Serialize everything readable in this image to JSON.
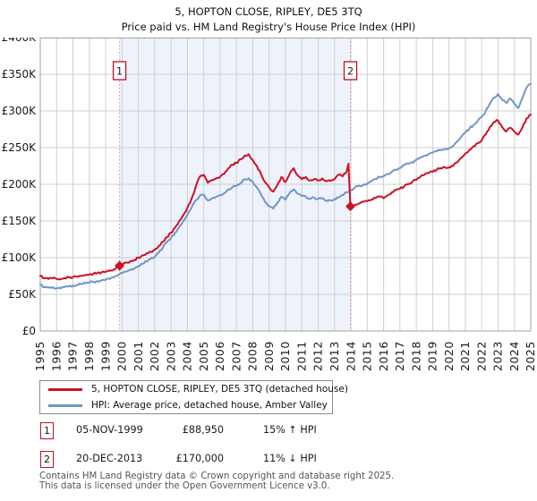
{
  "title": "5, HOPTON CLOSE, RIPLEY, DE5 3TQ",
  "subtitle": "Price paid vs. HM Land Registry's House Price Index (HPI)",
  "colors": {
    "property_line": "#cc1124",
    "hpi_line": "#7096c6",
    "marker_box_border": "#bb1122",
    "dashed_line": "#e58a8a",
    "band": "#eef2fb",
    "grid": "#cfcfcf",
    "axis_border": "#a0a0a0",
    "tick_text": "#1a1a1a"
  },
  "chart_data": {
    "type": "line",
    "title": "5, HOPTON CLOSE, RIPLEY, DE5 3TQ — Price paid vs. HM Land Registry's House Price Index (HPI)",
    "xlim": [
      1995,
      2025
    ],
    "ylim": [
      0,
      400000
    ],
    "grid": true,
    "x_ticks": [
      1995,
      1996,
      1997,
      1998,
      1999,
      2000,
      2001,
      2002,
      2003,
      2004,
      2005,
      2006,
      2007,
      2008,
      2009,
      2010,
      2011,
      2012,
      2013,
      2014,
      2015,
      2016,
      2017,
      2018,
      2019,
      2020,
      2021,
      2022,
      2023,
      2024,
      2025
    ],
    "y_ticks": {
      "values": [
        0,
        50000,
        100000,
        150000,
        200000,
        250000,
        300000,
        350000,
        400000
      ],
      "labels": [
        "£0",
        "£50K",
        "£100K",
        "£150K",
        "£200K",
        "£250K",
        "£300K",
        "£350K",
        "£400K"
      ]
    },
    "shaded_region": [
      1999.85,
      2013.97
    ],
    "markers": [
      {
        "label": "1",
        "x": 1999.85,
        "y": 88950
      },
      {
        "label": "2",
        "x": 2013.97,
        "y": 170000
      }
    ],
    "series": [
      {
        "name": "HPI: Average price, detached house, Amber Valley",
        "color": "#7096c6",
        "points": [
          [
            1995.0,
            63000
          ],
          [
            1995.25,
            60000
          ],
          [
            1995.5,
            59000
          ],
          [
            1995.75,
            60000
          ],
          [
            1996.0,
            58500
          ],
          [
            1996.25,
            58000
          ],
          [
            1996.5,
            60000
          ],
          [
            1996.75,
            61000
          ],
          [
            1997.0,
            62000
          ],
          [
            1997.25,
            63000
          ],
          [
            1997.5,
            64000
          ],
          [
            1997.75,
            65000
          ],
          [
            1998.0,
            66000
          ],
          [
            1998.25,
            67000
          ],
          [
            1998.5,
            68000
          ],
          [
            1998.75,
            69000
          ],
          [
            1999.0,
            70000
          ],
          [
            1999.25,
            71000
          ],
          [
            1999.5,
            73000
          ],
          [
            1999.75,
            76000
          ],
          [
            2000.0,
            79000
          ],
          [
            2000.25,
            81000
          ],
          [
            2000.5,
            83000
          ],
          [
            2000.75,
            85000
          ],
          [
            2001.0,
            88000
          ],
          [
            2001.25,
            92000
          ],
          [
            2001.5,
            95000
          ],
          [
            2001.75,
            98000
          ],
          [
            2002.0,
            101000
          ],
          [
            2002.25,
            107000
          ],
          [
            2002.5,
            114000
          ],
          [
            2002.75,
            121000
          ],
          [
            2003.0,
            127000
          ],
          [
            2003.25,
            134000
          ],
          [
            2003.5,
            142000
          ],
          [
            2003.75,
            150000
          ],
          [
            2004.0,
            158000
          ],
          [
            2004.25,
            168000
          ],
          [
            2004.5,
            178000
          ],
          [
            2004.75,
            184000
          ],
          [
            2005.0,
            186000
          ],
          [
            2005.25,
            178000
          ],
          [
            2005.5,
            181000
          ],
          [
            2005.75,
            183000
          ],
          [
            2006.0,
            185000
          ],
          [
            2006.25,
            188000
          ],
          [
            2006.5,
            193000
          ],
          [
            2006.75,
            196000
          ],
          [
            2007.0,
            198000
          ],
          [
            2007.25,
            202000
          ],
          [
            2007.5,
            207000
          ],
          [
            2007.75,
            208000
          ],
          [
            2008.0,
            203000
          ],
          [
            2008.25,
            196000
          ],
          [
            2008.5,
            186000
          ],
          [
            2008.75,
            176000
          ],
          [
            2009.0,
            170000
          ],
          [
            2009.25,
            167000
          ],
          [
            2009.5,
            175000
          ],
          [
            2009.75,
            183000
          ],
          [
            2010.0,
            179000
          ],
          [
            2010.25,
            188000
          ],
          [
            2010.5,
            193000
          ],
          [
            2010.75,
            187000
          ],
          [
            2011.0,
            184000
          ],
          [
            2011.25,
            183000
          ],
          [
            2011.5,
            180000
          ],
          [
            2011.75,
            182000
          ],
          [
            2012.0,
            180000
          ],
          [
            2012.25,
            181000
          ],
          [
            2012.5,
            178000
          ],
          [
            2012.75,
            178000
          ],
          [
            2013.0,
            180000
          ],
          [
            2013.25,
            182000
          ],
          [
            2013.5,
            185000
          ],
          [
            2013.75,
            189000
          ],
          [
            2013.97,
            192000
          ],
          [
            2014.25,
            196000
          ],
          [
            2014.5,
            198000
          ],
          [
            2014.75,
            199000
          ],
          [
            2015.0,
            201000
          ],
          [
            2015.25,
            204000
          ],
          [
            2015.5,
            207000
          ],
          [
            2015.75,
            210000
          ],
          [
            2016.0,
            211000
          ],
          [
            2016.25,
            214000
          ],
          [
            2016.5,
            217000
          ],
          [
            2016.75,
            220000
          ],
          [
            2017.0,
            222000
          ],
          [
            2017.25,
            226000
          ],
          [
            2017.5,
            228000
          ],
          [
            2017.75,
            230000
          ],
          [
            2018.0,
            233000
          ],
          [
            2018.25,
            237000
          ],
          [
            2018.5,
            239000
          ],
          [
            2018.75,
            241000
          ],
          [
            2019.0,
            243000
          ],
          [
            2019.25,
            245000
          ],
          [
            2019.5,
            247000
          ],
          [
            2019.75,
            248000
          ],
          [
            2020.0,
            249000
          ],
          [
            2020.25,
            252000
          ],
          [
            2020.5,
            258000
          ],
          [
            2020.75,
            265000
          ],
          [
            2021.0,
            271000
          ],
          [
            2021.25,
            276000
          ],
          [
            2021.5,
            281000
          ],
          [
            2021.75,
            286000
          ],
          [
            2022.0,
            292000
          ],
          [
            2022.25,
            300000
          ],
          [
            2022.5,
            310000
          ],
          [
            2022.75,
            318000
          ],
          [
            2023.0,
            323000
          ],
          [
            2023.25,
            315000
          ],
          [
            2023.5,
            311000
          ],
          [
            2023.75,
            317000
          ],
          [
            2024.0,
            310000
          ],
          [
            2024.25,
            304000
          ],
          [
            2024.5,
            318000
          ],
          [
            2024.75,
            332000
          ],
          [
            2025.0,
            337000
          ]
        ]
      },
      {
        "name": "5, HOPTON CLOSE, RIPLEY, DE5 3TQ (detached house)",
        "color": "#cc1124",
        "points": [
          [
            1995.0,
            75000
          ],
          [
            1995.25,
            72000
          ],
          [
            1995.5,
            71000
          ],
          [
            1995.75,
            72000
          ],
          [
            1996.0,
            71000
          ],
          [
            1996.25,
            70500
          ],
          [
            1996.5,
            72000
          ],
          [
            1996.75,
            73000
          ],
          [
            1997.0,
            73500
          ],
          [
            1997.25,
            74000
          ],
          [
            1997.5,
            75000
          ],
          [
            1997.75,
            76000
          ],
          [
            1998.0,
            77000
          ],
          [
            1998.25,
            78000
          ],
          [
            1998.5,
            79000
          ],
          [
            1998.75,
            80000
          ],
          [
            1999.0,
            81000
          ],
          [
            1999.25,
            82000
          ],
          [
            1999.5,
            84000
          ],
          [
            1999.75,
            87000
          ],
          [
            1999.85,
            88950
          ],
          [
            2000.0,
            91000
          ],
          [
            2000.25,
            93000
          ],
          [
            2000.5,
            95000
          ],
          [
            2000.75,
            97000
          ],
          [
            2001.0,
            100000
          ],
          [
            2001.25,
            103000
          ],
          [
            2001.5,
            106000
          ],
          [
            2001.75,
            108000
          ],
          [
            2002.0,
            111000
          ],
          [
            2002.25,
            116000
          ],
          [
            2002.5,
            122000
          ],
          [
            2002.75,
            128000
          ],
          [
            2003.0,
            134000
          ],
          [
            2003.25,
            141000
          ],
          [
            2003.5,
            150000
          ],
          [
            2003.75,
            158000
          ],
          [
            2004.0,
            168000
          ],
          [
            2004.25,
            180000
          ],
          [
            2004.5,
            196000
          ],
          [
            2004.75,
            210000
          ],
          [
            2005.0,
            213000
          ],
          [
            2005.25,
            202000
          ],
          [
            2005.5,
            206000
          ],
          [
            2005.75,
            208000
          ],
          [
            2006.0,
            210000
          ],
          [
            2006.25,
            214000
          ],
          [
            2006.5,
            222000
          ],
          [
            2006.75,
            227000
          ],
          [
            2007.0,
            229000
          ],
          [
            2007.25,
            234000
          ],
          [
            2007.5,
            239000
          ],
          [
            2007.75,
            241000
          ],
          [
            2008.0,
            233000
          ],
          [
            2008.25,
            225000
          ],
          [
            2008.5,
            214000
          ],
          [
            2008.75,
            203000
          ],
          [
            2009.0,
            196000
          ],
          [
            2009.25,
            190000
          ],
          [
            2009.5,
            199000
          ],
          [
            2009.75,
            210000
          ],
          [
            2010.0,
            203000
          ],
          [
            2010.25,
            214000
          ],
          [
            2010.5,
            222000
          ],
          [
            2010.75,
            212000
          ],
          [
            2011.0,
            207000
          ],
          [
            2011.25,
            210000
          ],
          [
            2011.5,
            205000
          ],
          [
            2011.75,
            207000
          ],
          [
            2012.0,
            205000
          ],
          [
            2012.25,
            208000
          ],
          [
            2012.5,
            204000
          ],
          [
            2012.75,
            205000
          ],
          [
            2013.0,
            207000
          ],
          [
            2013.25,
            213000
          ],
          [
            2013.5,
            211000
          ],
          [
            2013.75,
            218000
          ],
          [
            2013.85,
            228000
          ],
          [
            2013.97,
            170000
          ],
          [
            2014.25,
            172000
          ],
          [
            2014.5,
            174000
          ],
          [
            2014.75,
            176000
          ],
          [
            2015.0,
            177000
          ],
          [
            2015.25,
            179000
          ],
          [
            2015.5,
            181000
          ],
          [
            2015.75,
            183000
          ],
          [
            2016.0,
            181000
          ],
          [
            2016.25,
            185000
          ],
          [
            2016.5,
            189000
          ],
          [
            2016.75,
            192000
          ],
          [
            2017.0,
            194000
          ],
          [
            2017.25,
            197000
          ],
          [
            2017.5,
            200000
          ],
          [
            2017.75,
            203000
          ],
          [
            2018.0,
            206000
          ],
          [
            2018.25,
            210000
          ],
          [
            2018.5,
            213000
          ],
          [
            2018.75,
            215000
          ],
          [
            2019.0,
            217000
          ],
          [
            2019.25,
            220000
          ],
          [
            2019.5,
            222000
          ],
          [
            2019.75,
            223000
          ],
          [
            2020.0,
            223000
          ],
          [
            2020.25,
            225000
          ],
          [
            2020.5,
            230000
          ],
          [
            2020.75,
            236000
          ],
          [
            2021.0,
            242000
          ],
          [
            2021.25,
            247000
          ],
          [
            2021.5,
            252000
          ],
          [
            2021.75,
            256000
          ],
          [
            2022.0,
            260000
          ],
          [
            2022.25,
            268000
          ],
          [
            2022.5,
            278000
          ],
          [
            2022.75,
            285000
          ],
          [
            2023.0,
            287000
          ],
          [
            2023.25,
            278000
          ],
          [
            2023.5,
            272000
          ],
          [
            2023.75,
            277000
          ],
          [
            2024.0,
            272000
          ],
          [
            2024.25,
            268000
          ],
          [
            2024.5,
            278000
          ],
          [
            2024.75,
            290000
          ],
          [
            2025.0,
            295000
          ]
        ]
      }
    ]
  },
  "legend": {
    "items": [
      {
        "label": "5, HOPTON CLOSE, RIPLEY, DE5 3TQ (detached house)",
        "color": "#cc1124"
      },
      {
        "label": "HPI: Average price, detached house, Amber Valley",
        "color": "#7096c6"
      }
    ]
  },
  "annotations": [
    {
      "num": "1",
      "date": "05-NOV-1999",
      "price": "£88,950",
      "hpi": "15% ↑ HPI"
    },
    {
      "num": "2",
      "date": "20-DEC-2013",
      "price": "£170,000",
      "hpi": "11% ↓ HPI"
    }
  ],
  "footer": {
    "line1": "Contains HM Land Registry data © Crown copyright and database right 2025.",
    "line2": "This data is licensed under the Open Government Licence v3.0."
  }
}
